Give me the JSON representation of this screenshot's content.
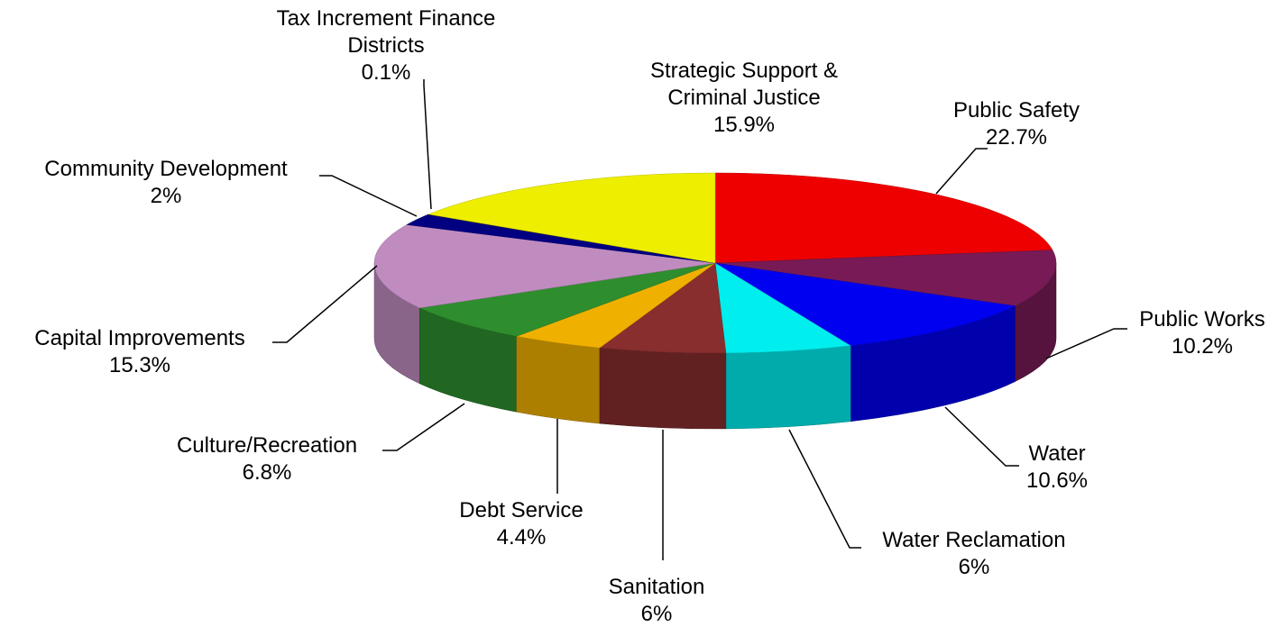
{
  "chart_data": {
    "type": "pie",
    "style": "3d",
    "title": "",
    "slices": [
      {
        "label": "Public Safety",
        "value": 22.7,
        "value_label": "22.7%",
        "color": "#ee0000"
      },
      {
        "label": "Public Works",
        "value": 10.2,
        "value_label": "10.2%",
        "color": "#771a55"
      },
      {
        "label": "Water",
        "value": 10.6,
        "value_label": "10.6%",
        "color": "#0000f0"
      },
      {
        "label": "Water Reclamation",
        "value": 6,
        "value_label": "6%",
        "color": "#00eeee"
      },
      {
        "label": "Sanitation",
        "value": 6,
        "value_label": "6%",
        "color": "#882e2e"
      },
      {
        "label": "Debt Service",
        "value": 4.4,
        "value_label": "4.4%",
        "color": "#f0b000"
      },
      {
        "label": "Culture/Recreation",
        "value": 6.8,
        "value_label": "6.8%",
        "color": "#2e8e2e"
      },
      {
        "label": "Capital Improvements",
        "value": 15.3,
        "value_label": "15.3%",
        "color": "#c08cc0"
      },
      {
        "label": "Community Development",
        "value": 2,
        "value_label": "2%",
        "color": "#000080"
      },
      {
        "label": "Tax Increment Finance Districts",
        "value": 0.1,
        "value_label": "0.1%",
        "color": "#000060"
      },
      {
        "label": "Strategic Support & Criminal Justice",
        "value": 15.9,
        "value_label": "15.9%",
        "color": "#eeee00"
      }
    ]
  }
}
